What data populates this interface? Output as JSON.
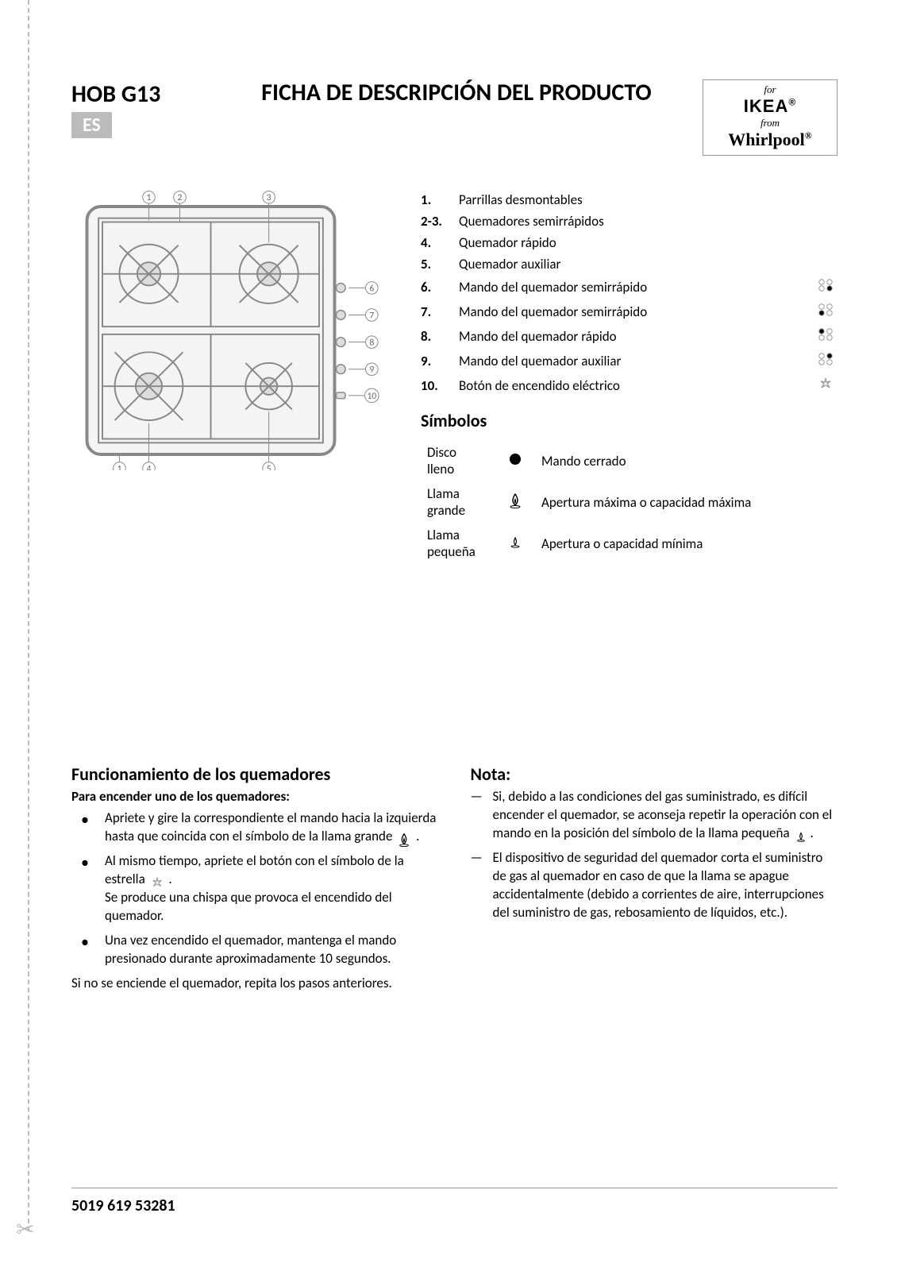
{
  "header": {
    "model": "HOB G13",
    "lang_badge": "ES",
    "title": "FICHA DE DESCRIPCIÓN DEL PRODUCTO",
    "brand": {
      "for": "for",
      "ikea": "IKEA",
      "from": "from",
      "whirlpool": "Whirlpool"
    }
  },
  "parts": [
    {
      "num": "1.",
      "txt": "Parrillas desmontables",
      "icon": null
    },
    {
      "num": "2-3.",
      "txt": "Quemadores semirrápidos",
      "icon": null
    },
    {
      "num": "4.",
      "txt": "Quemador rápido",
      "icon": null
    },
    {
      "num": "5.",
      "txt": "Quemador auxiliar",
      "icon": null
    },
    {
      "num": "6.",
      "txt": "Mando del quemador semirrápido",
      "icon": "knob-tr"
    },
    {
      "num": "7.",
      "txt": "Mando del quemador semirrápido",
      "icon": "knob-tl"
    },
    {
      "num": "8.",
      "txt": "Mando del quemador rápido",
      "icon": "knob-bl"
    },
    {
      "num": "9.",
      "txt": "Mando del quemador auxiliar",
      "icon": "knob-br"
    },
    {
      "num": "10.",
      "txt": "Botón de encendido eléctrico",
      "icon": "spark"
    }
  ],
  "symbols": {
    "heading": "Símbolos",
    "rows": [
      {
        "label": "Disco lleno",
        "icon": "disc",
        "desc": "Mando cerrado"
      },
      {
        "label": "Llama grande",
        "icon": "flame-big",
        "desc": "Apertura máxima o capacidad máxima"
      },
      {
        "label": "Llama pequeña",
        "icon": "flame-small",
        "desc": "Apertura o capacidad mínima"
      }
    ]
  },
  "operation": {
    "heading": "Funcionamiento de los quemadores",
    "subheading": "Para encender uno de los quemadores:",
    "bullets": [
      "Apriete y gire la correspondiente el mando hacia la izquierda hasta que coincida con el símbolo de la llama grande {flame-big} .",
      "Al mismo tiempo, apriete el botón con el símbolo de la estrella {spark} .\nSe produce una chispa que provoca el encendido del quemador.",
      "Una vez encendido el quemador, mantenga el mando presionado durante aproximadamente 10 segundos."
    ],
    "after": "Si no se enciende el quemador, repita los pasos anteriores."
  },
  "note": {
    "heading": "Nota:",
    "items": [
      "Si, debido a las condiciones del gas suministrado, es difícil encender el quemador, se aconseja repetir la operación con el mando en la posición del símbolo de la llama pequeña {flame-small}.",
      "El dispositivo de seguridad del quemador corta el suministro de gas al quemador en caso de que la llama se apague accidentalmente (debido a corrientes de aire, interrupciones del suministro de gas, rebosamiento de líquidos, etc.)."
    ]
  },
  "footer": "5019 619 53281",
  "diagram": {
    "callouts": [
      "1",
      "2",
      "3",
      "4",
      "5",
      "6",
      "7",
      "8",
      "9",
      "10"
    ],
    "stroke": "#888",
    "fill": "#eee"
  }
}
